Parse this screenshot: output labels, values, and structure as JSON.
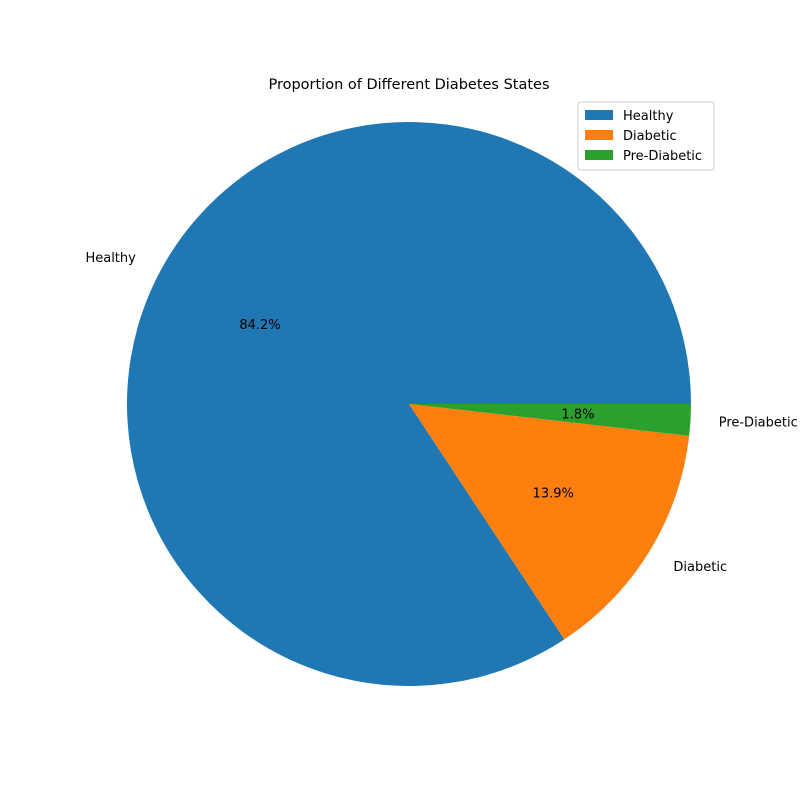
{
  "chart_data": {
    "type": "pie",
    "title": "Proportion of Different Diabetes States",
    "categories": [
      "Healthy",
      "Diabetic",
      "Pre-Diabetic"
    ],
    "values": [
      84.2,
      13.9,
      1.8
    ],
    "value_labels": [
      "84.2%",
      "13.9%",
      "1.8%"
    ],
    "colors": [
      "#1f77b4",
      "#ff7f0e",
      "#2ca02c"
    ],
    "legend": {
      "position": "top-right",
      "entries": [
        "Healthy",
        "Diabetic",
        "Pre-Diabetic"
      ]
    }
  }
}
